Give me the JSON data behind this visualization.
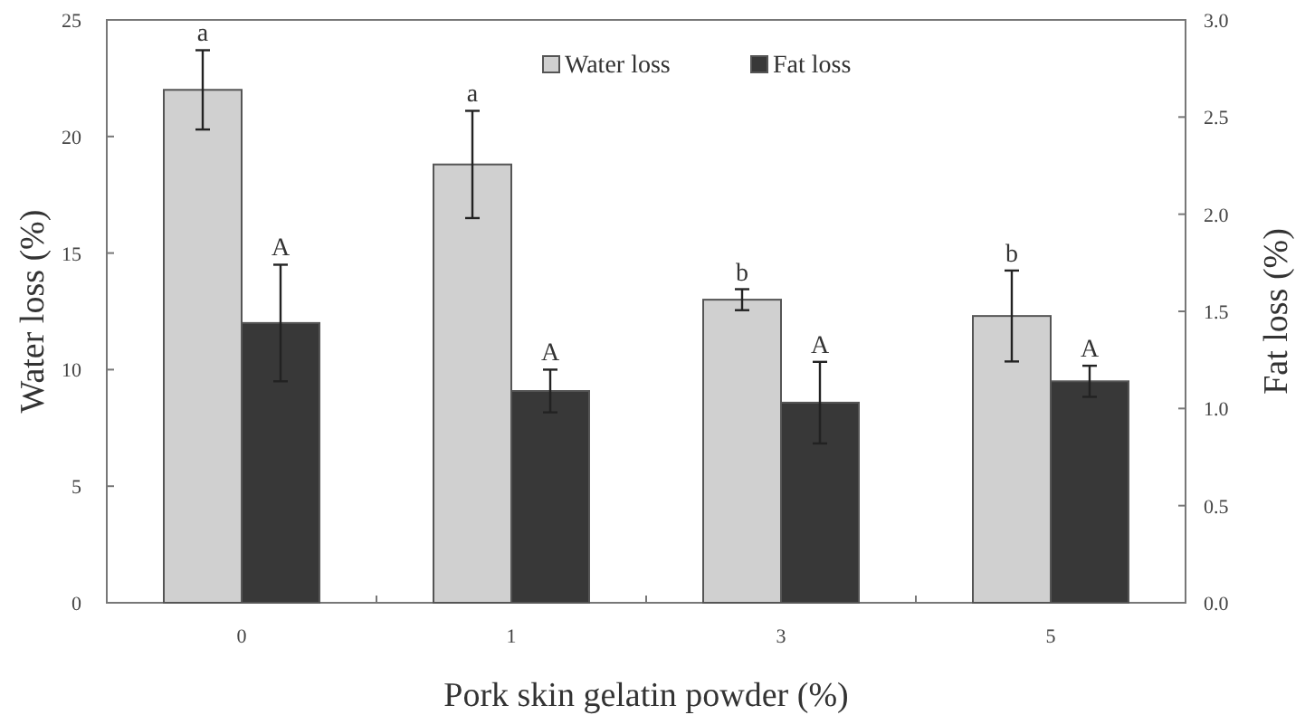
{
  "chart_data": {
    "type": "bar",
    "xlabel": "Pork skin gelatin powder (%)",
    "ylabel": "Water loss (%)",
    "y2label": "Fat loss (%)",
    "categories": [
      "0",
      "1",
      "3",
      "5"
    ],
    "series": [
      {
        "name": "Water loss",
        "color": "#d0d0d0",
        "values": [
          22.0,
          18.8,
          13.0,
          12.3
        ],
        "errors": [
          1.7,
          2.3,
          0.45,
          1.95
        ]
      },
      {
        "name": "Fat loss",
        "color": "#383838",
        "axis": "y2",
        "values": [
          1.44,
          1.09,
          1.03,
          1.14
        ],
        "errors": [
          0.3,
          0.11,
          0.21,
          0.08
        ]
      }
    ],
    "ylim": [
      0,
      25
    ],
    "yticks": [
      0,
      5,
      10,
      15,
      20,
      25
    ],
    "y2lim": [
      0,
      3.0
    ],
    "y2ticks": [
      {
        "value": 0,
        "label": "0.0"
      },
      {
        "value": 0.5,
        "label": "0.5"
      },
      {
        "value": 1,
        "label": "1.0"
      },
      {
        "value": 1.5,
        "label": "1.5"
      },
      {
        "value": 2,
        "label": "2.0"
      },
      {
        "value": 2.5,
        "label": "2.5"
      },
      {
        "value": 3,
        "label": "3.0"
      }
    ],
    "annotations": [
      "a",
      "a",
      "b",
      "b",
      "A",
      "A",
      "A",
      "A"
    ],
    "legend": "top",
    "grid": false
  }
}
